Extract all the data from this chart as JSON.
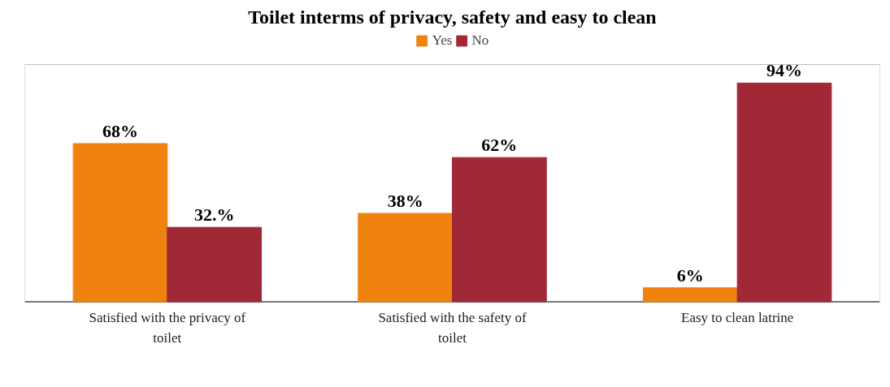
{
  "chart_data": {
    "type": "bar",
    "title": "Toilet interms of privacy, safety and easy to clean",
    "categories": [
      "Satisfied with the privacy of toilet",
      "Satisfied with the safety of toilet",
      "Easy to clean latrine"
    ],
    "series": [
      {
        "name": "Yes",
        "color": "#f0820f",
        "values": [
          68,
          38,
          6
        ],
        "value_labels": [
          "68%",
          "38%",
          "6%"
        ]
      },
      {
        "name": "No",
        "color": "#a02837",
        "values": [
          32,
          62,
          94
        ],
        "value_labels": [
          "32.%",
          "62%",
          "94%"
        ]
      }
    ],
    "ylim": [
      0,
      102
    ],
    "tick_labels": "x",
    "grid": false,
    "legend": "top"
  }
}
